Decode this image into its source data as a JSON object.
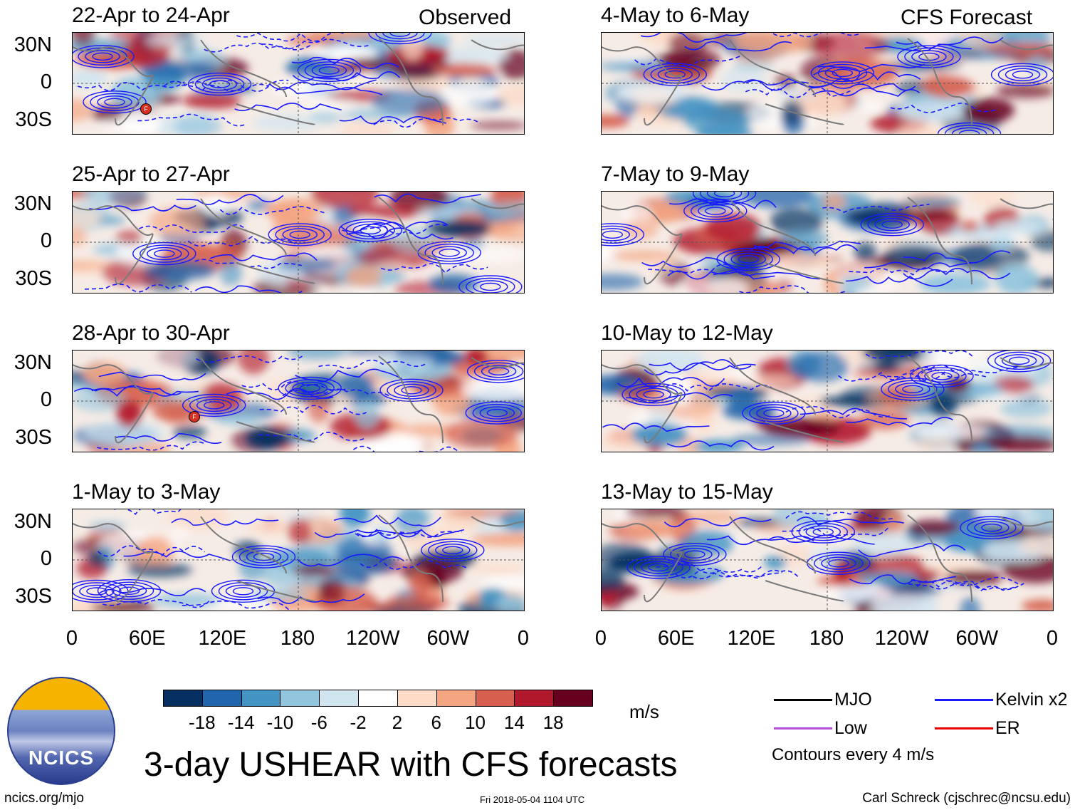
{
  "headers": {
    "observed": "Observed",
    "forecast": "CFS Forecast"
  },
  "panels": [
    {
      "title": "22-Apr to 24-Apr",
      "kind": "observed",
      "marker": true
    },
    {
      "title": "25-Apr to 27-Apr",
      "kind": "observed",
      "marker": false
    },
    {
      "title": "28-Apr to 30-Apr",
      "kind": "observed",
      "marker": true
    },
    {
      "title": "1-May to 3-May",
      "kind": "observed",
      "marker": false
    },
    {
      "title": "4-May to 6-May",
      "kind": "forecast",
      "marker": false
    },
    {
      "title": "7-May to 9-May",
      "kind": "forecast",
      "marker": false
    },
    {
      "title": "10-May to 12-May",
      "kind": "forecast",
      "marker": false
    },
    {
      "title": "13-May to 15-May",
      "kind": "forecast",
      "marker": false
    }
  ],
  "lat_labels": [
    "30N",
    "0",
    "30S"
  ],
  "lon_labels": [
    "0",
    "60E",
    "120E",
    "180",
    "120W",
    "60W",
    "0"
  ],
  "marker_letter": "F",
  "colorbar": {
    "unit": "m/s",
    "colors": [
      "#053061",
      "#2166ac",
      "#4393c3",
      "#92c5de",
      "#d1e5f0",
      "#ffffff",
      "#fddbc7",
      "#f4a582",
      "#d6604d",
      "#b2182b",
      "#67001f"
    ],
    "labels": [
      "-18",
      "-14",
      "-10",
      "-6",
      "-2",
      "2",
      "6",
      "10",
      "14",
      "18"
    ]
  },
  "legend": {
    "items": [
      {
        "label": "MJO",
        "color": "#000000"
      },
      {
        "label": "Kelvin x2",
        "color": "#1a1aff"
      },
      {
        "label": "Low",
        "color": "#b34dd9"
      },
      {
        "label": "ER",
        "color": "#e60000"
      }
    ],
    "note": "Contours every 4 m/s"
  },
  "logo_text": "NCICS",
  "main_title": "3-day USHEAR with CFS forecasts",
  "footer": {
    "left": "ncics.org/mjo",
    "center": "Fri 2018-05-04 1104 UTC",
    "right": "Carl Schreck (cjschrec@ncsu.edu)"
  }
}
